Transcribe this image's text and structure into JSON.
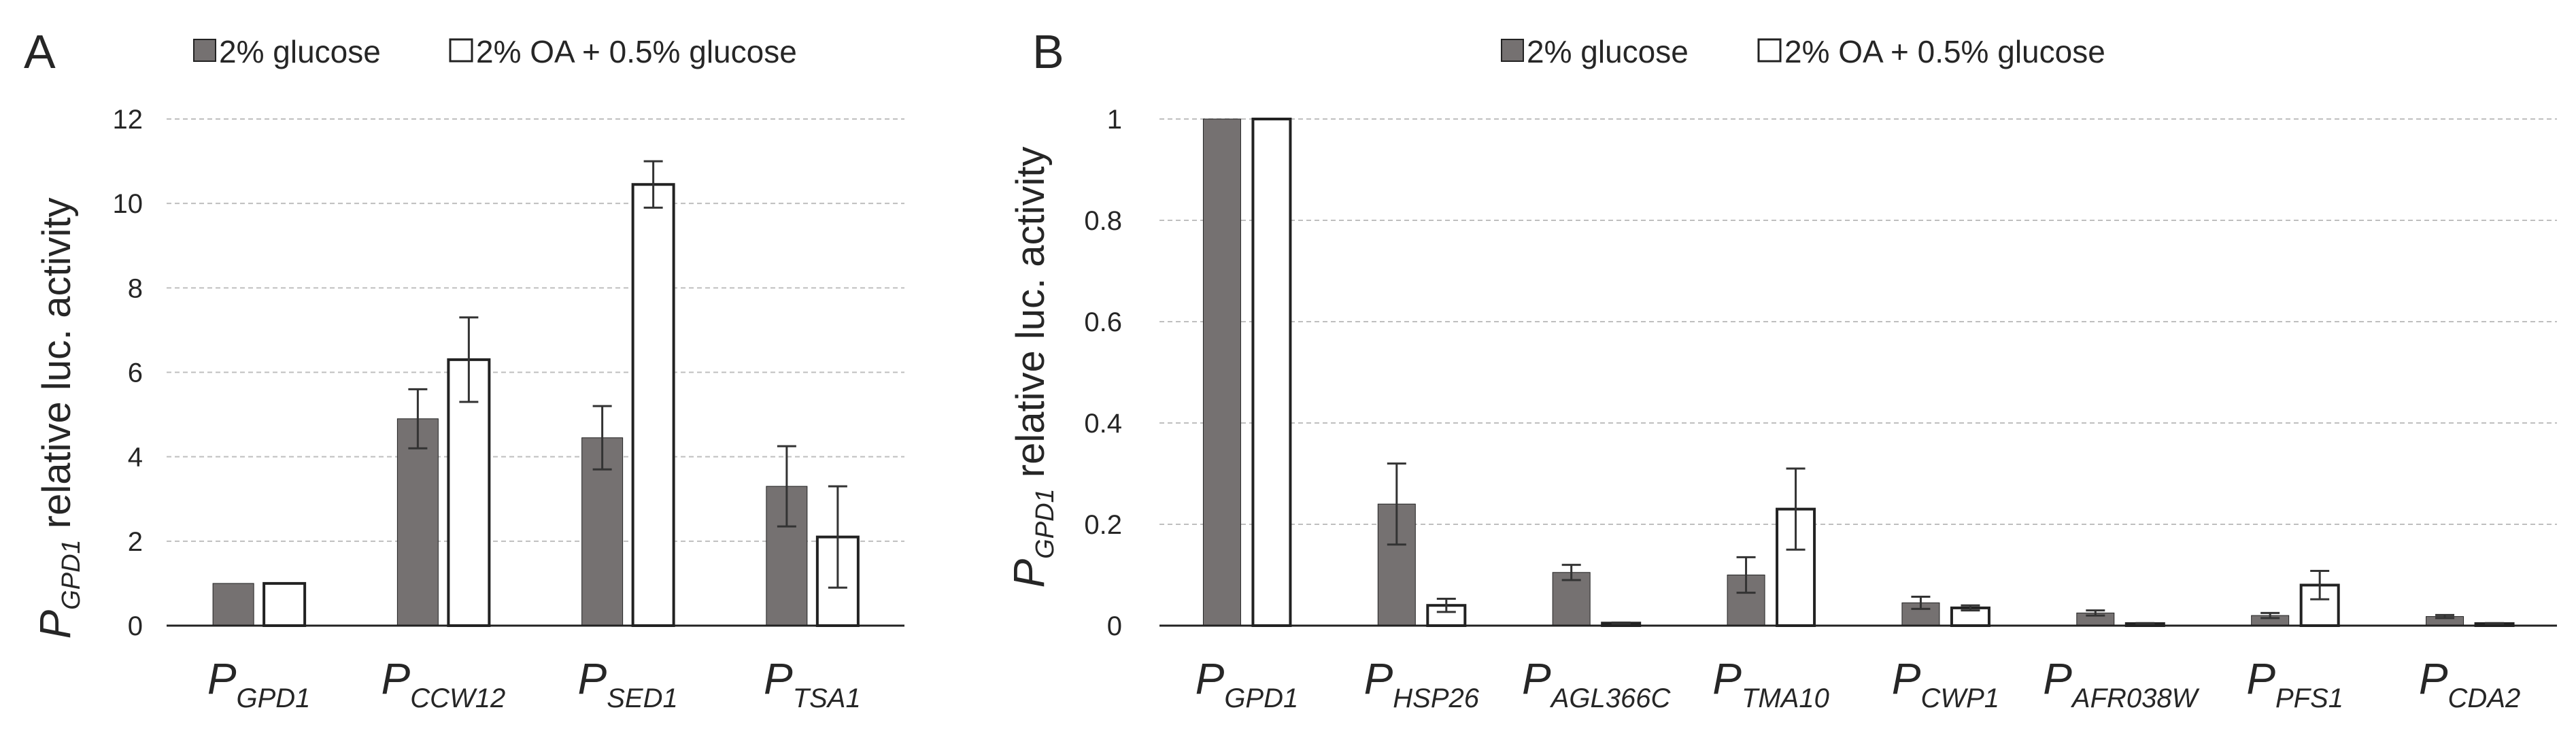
{
  "legend": {
    "glucose": "2% glucose",
    "oa": "2% OA + 0.5% glucose"
  },
  "colors": {
    "glucose": "#757171",
    "oa": "#ffffff",
    "edge": "#222222",
    "grid": "#bfbfbf"
  },
  "chart_data": [
    {
      "panel": "A",
      "type": "bar",
      "ylabel_prefix": "P",
      "ylabel_sub": "GPD1",
      "ylabel_text": " relative luc. activity",
      "categories": [
        {
          "prefix": "P",
          "sub": "GPD1"
        },
        {
          "prefix": "P",
          "sub": "CCW12"
        },
        {
          "prefix": "P",
          "sub": "SED1"
        },
        {
          "prefix": "P",
          "sub": "TSA1"
        }
      ],
      "series": [
        {
          "name": "2% glucose",
          "values": [
            1.0,
            4.9,
            4.45,
            3.3
          ],
          "errors": [
            0.0,
            0.7,
            0.75,
            0.95
          ]
        },
        {
          "name": "2% OA + 0.5% glucose",
          "values": [
            1.0,
            6.3,
            10.45,
            2.1
          ],
          "errors": [
            0.0,
            1.0,
            0.55,
            1.2
          ]
        }
      ],
      "ylim": [
        0,
        12
      ],
      "yticks": [
        0,
        2,
        4,
        6,
        8,
        10,
        12
      ],
      "ytick_labels": [
        "0",
        "2",
        "4",
        "6",
        "8",
        "10",
        "12"
      ],
      "grid": true,
      "legend_position": "top"
    },
    {
      "panel": "B",
      "type": "bar",
      "ylabel_prefix": "P",
      "ylabel_sub": "GPD1",
      "ylabel_text": " relative luc. activity",
      "categories": [
        {
          "prefix": "P",
          "sub": "GPD1"
        },
        {
          "prefix": "P",
          "sub": "HSP26"
        },
        {
          "prefix": "P",
          "sub": "AGL366C"
        },
        {
          "prefix": "P",
          "sub": "TMA10"
        },
        {
          "prefix": "P",
          "sub": "CWP1"
        },
        {
          "prefix": "P",
          "sub": "AFR038W"
        },
        {
          "prefix": "P",
          "sub": "PFS1"
        },
        {
          "prefix": "P",
          "sub": "CDA2"
        }
      ],
      "series": [
        {
          "name": "2% glucose",
          "values": [
            1.0,
            0.24,
            0.105,
            0.1,
            0.045,
            0.025,
            0.02,
            0.018
          ],
          "errors": [
            0.0,
            0.08,
            0.015,
            0.035,
            0.012,
            0.005,
            0.005,
            0.003
          ]
        },
        {
          "name": "2% OA + 0.5% glucose",
          "values": [
            1.0,
            0.04,
            0.005,
            0.23,
            0.035,
            0.004,
            0.08,
            0.004
          ],
          "errors": [
            0.0,
            0.013,
            0.001,
            0.08,
            0.005,
            0.001,
            0.028,
            0.001
          ]
        }
      ],
      "ylim": [
        0,
        1
      ],
      "yticks": [
        0,
        0.2,
        0.4,
        0.6,
        0.8,
        1
      ],
      "ytick_labels": [
        "0",
        "0.2",
        "0.4",
        "0.6",
        "0.8",
        "1"
      ],
      "grid": true,
      "legend_position": "top"
    }
  ]
}
